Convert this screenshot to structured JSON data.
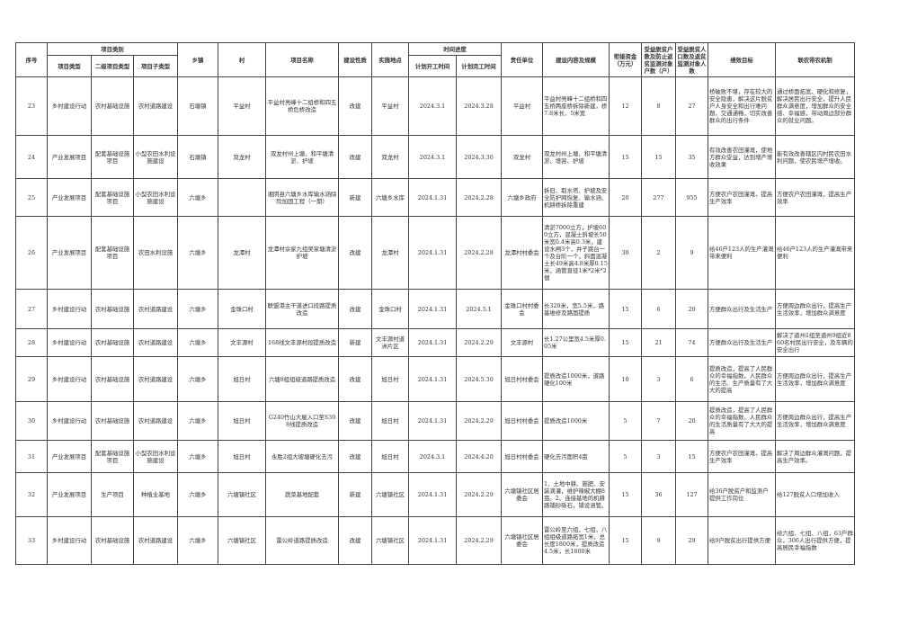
{
  "header": {
    "seq": "序号",
    "category": "项目类别",
    "type": "项目类型",
    "subtype2": "二级项目类型",
    "subtype": "项目子类型",
    "town": "乡镇",
    "village": "村",
    "name": "项目名称",
    "nature": "建设性质",
    "site": "实施地点",
    "schedule": "时间进度",
    "start": "计划开工时间",
    "end": "计划完工时间",
    "unit": "责任单位",
    "content": "建设内容及规模",
    "funds": "衔接资金（万元）",
    "households": "受益脱贫户数及防止返贫监测对象户数（户）",
    "people": "受益脱贫人口数及返贫监测对象人数",
    "goal": "绩效目标",
    "mechanism": "联农带农机制"
  },
  "rows": [
    {
      "seq": "23",
      "type": "乡村建设行动",
      "subtype2": "农村基础设施",
      "subtype": "农村道路建设",
      "town": "石塘镇",
      "village": "平益村",
      "name": "平益村亮峰十二组桥和四五桥危桥改造",
      "nature": "改建",
      "site": "平益村",
      "start": "2024.3.1",
      "end": "2024.3.28",
      "unit": "平益村",
      "content": "平益村亮峰十二组桥和四五桥两座桥拆除新建，桥7.8米长、5米宽",
      "funds": "12",
      "households": "8",
      "people": "27",
      "goal": "桥破败不堪，存在较大的安全隐患，解决这片脱贫户人身安全和出行难问题，交通通畅，切实改善群众的出行条件",
      "mechanism": "通过桥面拓宽、硬化和修复，解决居民出行安全，提升人民群众满意度，增加群众的安全感、幸福感，带动周边部分群众的就业问题。"
    },
    {
      "seq": "24",
      "type": "产业发展项目",
      "subtype2": "配套基础设施项目",
      "subtype": "小型农田水利设施建设",
      "town": "石塘镇",
      "village": "双龙村",
      "name": "双龙村州上塘、和平塘清淤、护坡",
      "nature": "改建",
      "site": "双龙村",
      "start": "2024.3.1",
      "end": "2024.3.30",
      "unit": "双龙村",
      "content": "双龙村州上塘、和平塘清淤、增容、护坡",
      "funds": "15",
      "households": "15",
      "people": "35",
      "goal": "有效改善农田灌溉，使地方群众受益，达到增产增收效果",
      "mechanism": "能有效改善辖区内村民农田水利问题，使农民增产增收。"
    },
    {
      "seq": "25",
      "type": "产业发展项目",
      "subtype2": "配套基础设施项目",
      "subtype": "小型农田水利设施建设",
      "town": "六塘乡",
      "village": "",
      "name": "湘阴县六塘乡水库输水涵除险加固工程（一期）",
      "nature": "新建",
      "site": "六塘乡水库",
      "start": "2024.1.31",
      "end": "2024.2.28",
      "unit": "六塘乡政府",
      "content": "拆旧、取水塔、护坡及安全防护网恢复、输水涵、机耕桥拆除重建",
      "funds": "20",
      "households": "277",
      "people": "955",
      "goal": "方便农户农田灌溉，提高生产效率",
      "mechanism": "方便农户农田灌溉，提高生产效率"
    },
    {
      "seq": "26",
      "type": "产业发展项目",
      "subtype2": "配套基础设施项目",
      "subtype": "农田水利设施",
      "town": "六塘乡",
      "village": "龙潭村",
      "name": "龙潭村余家九组吴家塘清淤护坡",
      "nature": "改建",
      "site": "龙潭村",
      "start": "2024.1.31",
      "end": "2024.2.28",
      "unit": "龙潭村村委会",
      "content": "清淤7000立方，护坡600立方，混凝土斜坡长50米宽0.4米高0.3米，建设水闸3个，井子跳台一个及台阶一个，斜面混凝土长49米高4.8米厚0.15米，涵管直径1米*2米*2個",
      "funds": "30",
      "households": "2",
      "people": "9",
      "goal": "给46户123人的生产灌溉带来便利",
      "mechanism": "给46户123人的生产灌溉带来便利"
    },
    {
      "seq": "27",
      "type": "乡村建设行动",
      "subtype2": "农村基础设施",
      "subtype": "农村道路建设",
      "town": "六塘乡",
      "village": "金珠口村",
      "name": "联盟港主干道进口段路提质改造",
      "nature": "改建",
      "site": "金珠口村",
      "start": "2024.1.31",
      "end": "2024.5.1",
      "unit": "金珠口村村委会",
      "content": "长320米，宽5.5米，路基维修及路面提质",
      "funds": "15",
      "households": "6",
      "people": "20",
      "goal": "方便群众出行及生活生产",
      "mechanism": "方便周边群众出行，提高生产生活效率，增加群众满意度"
    },
    {
      "seq": "28",
      "type": "乡村建设行动",
      "subtype2": "农村基础设施",
      "subtype": "农村道路建设",
      "town": "六塘乡",
      "village": "文丰源村",
      "name": "168线文丰源村段提质改造",
      "nature": "新建",
      "site": "文丰源村道洲片区",
      "start": "2024.1.31",
      "end": "2024.2.29",
      "unit": "文丰源村",
      "content": "长1.27公里宽4.5米厚0.05米",
      "funds": "15",
      "households": "21",
      "people": "74",
      "goal": "方便群众出行及生活生产",
      "mechanism": "解决了道州1组至道州9组近860名村民出行安全，及车辆的安全出行"
    },
    {
      "seq": "29",
      "type": "乡村建设行动",
      "subtype2": "农村基础设施",
      "subtype": "农村道路建设",
      "town": "六塘乡",
      "village": "旭日村",
      "name": "六塘8组组级道路提质改造",
      "nature": "改建",
      "site": "旭日村",
      "start": "2024.1.31",
      "end": "2024.5.30",
      "unit": "旭日村村委会",
      "content": "提质改造1000米，道路硬化100米",
      "funds": "10",
      "households": "3",
      "people": "6",
      "goal": "提质改造，提高了人民群众的幸福指数，人民群众的生活、生产质量有了大大的提高",
      "mechanism": "方便周边群众出行，提高生产生活效率，增加群众满意度"
    },
    {
      "seq": "30",
      "type": "乡村建设行动",
      "subtype2": "农村基础设施",
      "subtype": "农村道路建设",
      "town": "六塘乡",
      "village": "旭日村",
      "name": "G240竹山大屋入口至S308线提质改造",
      "nature": "改建",
      "site": "旭日村",
      "start": "2024.1.31",
      "end": "2024.2.29",
      "unit": "旭日村村委会",
      "content": "提质改造1000米",
      "funds": "5",
      "households": "7",
      "people": "20",
      "goal": "提质改造，提高了人民群众的幸福指数，人民群众的生活质量有了大大的提高",
      "mechanism": "方便周边群众出行，提高生产生活效率，增加群众满意度"
    },
    {
      "seq": "31",
      "type": "产业发展项目",
      "subtype2": "配套基础设施项目",
      "subtype": "小型农田水利设施建设",
      "town": "六塘乡",
      "village": "旭日村",
      "name": "永胜2组大坡塘硬化去污",
      "nature": "改建",
      "site": "旭日村",
      "start": "2024.3.1",
      "end": "2024.4.20",
      "unit": "旭日村村委会",
      "content": "硬化去污面积4亩",
      "funds": "5",
      "households": "3",
      "people": "15",
      "goal": "方便农户农田灌溉，提高生产效率",
      "mechanism": "解决了周边群众灌溉问题，提高生产效率。"
    },
    {
      "seq": "32",
      "type": "产业发展项目",
      "subtype2": "生产项目",
      "subtype": "种植业基地",
      "town": "六塘乡",
      "village": "六塘镇社区",
      "name": "蔬菜基地配套",
      "nature": "新建",
      "site": "六塘镇社区",
      "start": "2024.1.31",
      "end": "2024.2.29",
      "unit": "六塘镇社区居委会",
      "content": "1、土地中耕、施肥、安装滴灌，维护辣椒大棚8亩。2、连接基地的机耕路铺砂砾石，铺设涵管。",
      "funds": "15",
      "households": "36",
      "people": "127",
      "goal": "给36户脱贫户和监测户提供工作岗位",
      "mechanism": "给127脱贫人口增加收入"
    },
    {
      "seq": "33",
      "type": "乡村建设行动",
      "subtype2": "农村基础设施",
      "subtype": "农村道路建设",
      "town": "六塘乡",
      "village": "六塘镇社区",
      "name": "雷公岭道路提质改造",
      "nature": "改建",
      "site": "六塘镇社区",
      "start": "2024.1.31",
      "end": "2024.2.29",
      "unit": "六塘镇社区居委会",
      "content": "雷公岭至六组，七组，八组组级道路拓宽1米，总长度1800米，提质改造4.5米，长1800米",
      "funds": "15",
      "households": "9",
      "people": "29",
      "goal": "给9户脱贫出行提供方便",
      "mechanism": "给六组、七组、八组，63户群众，306人出行提供方便，提高居民幸福指数"
    }
  ]
}
